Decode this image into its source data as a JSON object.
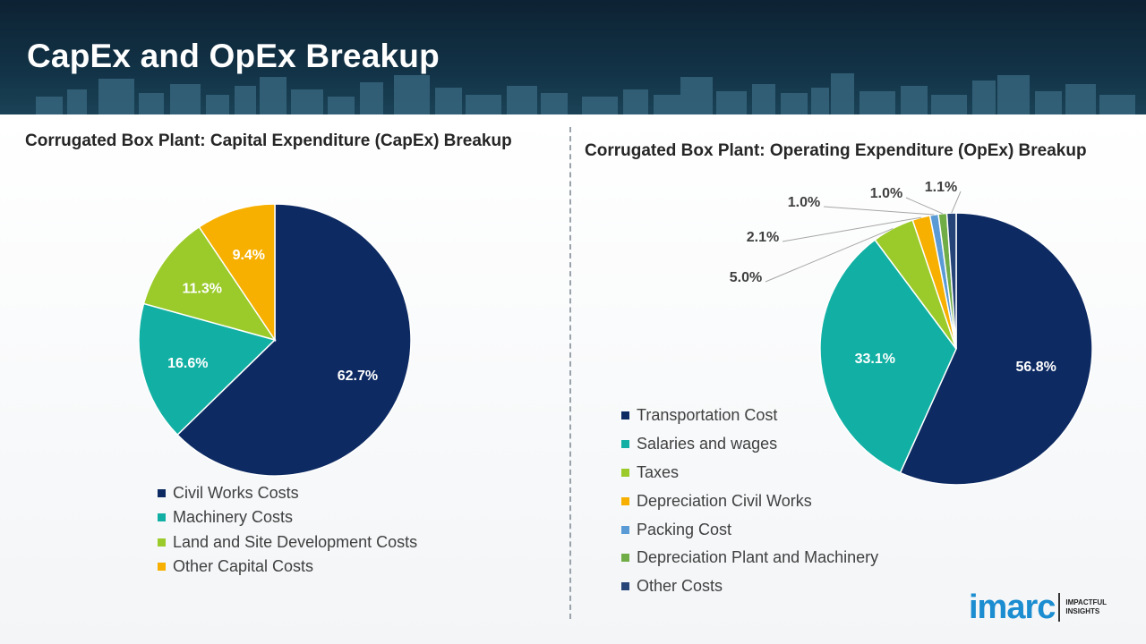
{
  "page": {
    "title": "CapEx and OpEx Breakup"
  },
  "brand": {
    "logo_text": "imarc",
    "tagline": "IMPACTFUL INSIGHTS",
    "color": "#1b8dd0"
  },
  "chart_data": [
    {
      "type": "pie",
      "title": "Corrugated Box Plant: Capital Expenditure (CapEx) Breakup",
      "categories": [
        "Civil Works Costs",
        "Machinery Costs",
        "Land and Site Development Costs",
        "Other Capital Costs"
      ],
      "values": [
        62.7,
        16.6,
        11.3,
        9.4
      ],
      "labels": [
        "62.7%",
        "16.6%",
        "11.3%",
        "9.4%"
      ],
      "colors": [
        "#0d2a62",
        "#12b0a4",
        "#9bcb2a",
        "#f7b000"
      ],
      "label_colors": [
        "#ffffff",
        "#ffffff",
        "#ffffff",
        "#ffffff"
      ],
      "legend_position": "bottom"
    },
    {
      "type": "pie",
      "title": "Corrugated Box Plant: Operating Expenditure (OpEx) Breakup",
      "categories": [
        "Transportation Cost",
        "Salaries and wages",
        "Taxes",
        "Depreciation Civil Works",
        "Packing Cost",
        "Depreciation Plant and Machinery",
        "Other Costs"
      ],
      "values": [
        56.8,
        33.1,
        5.0,
        2.1,
        1.0,
        1.0,
        1.1
      ],
      "labels": [
        "56.8%",
        "33.1%",
        "5.0%",
        "2.1%",
        "1.0%",
        "1.0%",
        "1.1%"
      ],
      "colors": [
        "#0d2a62",
        "#12b0a4",
        "#9bcb2a",
        "#f7b000",
        "#5b9bd5",
        "#70ad47",
        "#264478"
      ],
      "label_colors": [
        "#ffffff",
        "#ffffff",
        "#404040",
        "#404040",
        "#404040",
        "#404040",
        "#404040"
      ],
      "legend_position": "bottom-left"
    }
  ]
}
